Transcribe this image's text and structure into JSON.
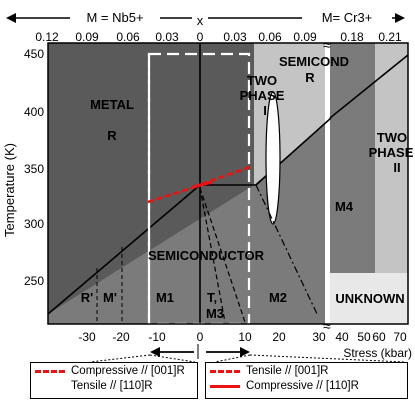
{
  "top_labels": {
    "left_dopant": "M = Nb5+",
    "x_label": "x",
    "right_dopant": "M= Cr3+"
  },
  "top_ticks": [
    "0.12",
    "0.09",
    "0.06",
    "0.03",
    "0",
    "0.03",
    "0.06",
    "0.09",
    "0.18",
    "0.21"
  ],
  "y_axis": {
    "label": "Temperature (K)",
    "ticks": [
      "450",
      "400",
      "350",
      "300",
      "250"
    ]
  },
  "x_axis": {
    "label": "Stress (kbar)",
    "ticks": [
      "-30",
      "-20",
      "-10",
      "0",
      "10",
      "20",
      "30",
      "40",
      "50",
      "60",
      "70"
    ]
  },
  "regions": {
    "metal": "METAL",
    "metal_r": "R",
    "two_phase_1": "TWO",
    "two_phase_1b": "PHASE",
    "two_phase_1c": "I",
    "semicond_top": "SEMICOND",
    "semicond_top_r": "R",
    "two_phase_2": "TWO",
    "two_phase_2b": "PHASE",
    "two_phase_2c": "II",
    "m4": "M4",
    "semiconductor": "SEMICONDUCTOR",
    "r_prime": "R'",
    "m_prime": "M'",
    "m1": "M1",
    "t_m3": "T,",
    "t_m3b": "M3",
    "m2": "M2",
    "unknown": "UNKNOWN"
  },
  "legend": {
    "left": {
      "row1": "Compressive // [001]R",
      "row2": "Tensile // [110]R"
    },
    "right": {
      "row1": "Tensile // [001]R",
      "row2": "Compressive // [110]R"
    }
  },
  "colors": {
    "dark_region": "#5a5a5a",
    "mid_region": "#7b7b7b",
    "light_region": "#c4c4c4",
    "pale_region": "#e8e8e8",
    "red": "#ee1111"
  }
}
